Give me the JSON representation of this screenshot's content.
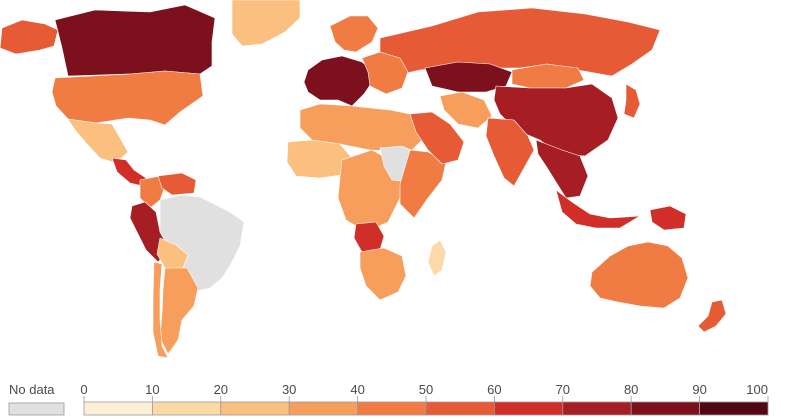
{
  "map": {
    "no_data_color": "#e0e0e0",
    "border_color": "#ffffff",
    "ocean_color": "#ffffff"
  },
  "legend": {
    "no_data_label": "No data",
    "ticks": [
      "0",
      "10",
      "20",
      "30",
      "40",
      "50",
      "60",
      "70",
      "80",
      "90",
      "100"
    ],
    "bins": [
      {
        "from": 0,
        "to": 10,
        "color": "#fdf0d8"
      },
      {
        "from": 10,
        "to": 20,
        "color": "#fcd9a6"
      },
      {
        "from": 20,
        "to": 30,
        "color": "#fbbf80"
      },
      {
        "from": 30,
        "to": 40,
        "color": "#f79e5c"
      },
      {
        "from": 40,
        "to": 50,
        "color": "#f07c43"
      },
      {
        "from": 50,
        "to": 60,
        "color": "#e65a35"
      },
      {
        "from": 60,
        "to": 70,
        "color": "#d12e2a"
      },
      {
        "from": 70,
        "to": 80,
        "color": "#a71d24"
      },
      {
        "from": 80,
        "to": 90,
        "color": "#7d101d"
      },
      {
        "from": 90,
        "to": 100,
        "color": "#520812"
      }
    ]
  },
  "regions": [
    {
      "name": "Greenland",
      "bin": 2
    },
    {
      "name": "Canada",
      "bin": 8
    },
    {
      "name": "Alaska",
      "bin": 5
    },
    {
      "name": "United States",
      "bin": 4
    },
    {
      "name": "Mexico",
      "bin": 2
    },
    {
      "name": "Central America",
      "bin": 6
    },
    {
      "name": "Colombia",
      "bin": 4
    },
    {
      "name": "Venezuela",
      "bin": 5
    },
    {
      "name": "Peru",
      "bin": 7
    },
    {
      "name": "Brazil",
      "bin": -1
    },
    {
      "name": "Bolivia",
      "bin": 2
    },
    {
      "name": "Argentina",
      "bin": 3
    },
    {
      "name": "Chile",
      "bin": 3
    },
    {
      "name": "Russia",
      "bin": 5
    },
    {
      "name": "Scandinavia",
      "bin": 4
    },
    {
      "name": "Western Europe",
      "bin": 8
    },
    {
      "name": "Eastern Europe",
      "bin": 4
    },
    {
      "name": "North Africa",
      "bin": 3
    },
    {
      "name": "West Africa",
      "bin": 2
    },
    {
      "name": "Central Africa",
      "bin": 3
    },
    {
      "name": "Sudan",
      "bin": -1
    },
    {
      "name": "East Africa",
      "bin": 4
    },
    {
      "name": "Angola",
      "bin": 6
    },
    {
      "name": "Southern Africa",
      "bin": 3
    },
    {
      "name": "Madagascar",
      "bin": 1
    },
    {
      "name": "Arabian Peninsula",
      "bin": 5
    },
    {
      "name": "Iran",
      "bin": 3
    },
    {
      "name": "Central Asia",
      "bin": 8
    },
    {
      "name": "Mongolia",
      "bin": 4
    },
    {
      "name": "China",
      "bin": 7
    },
    {
      "name": "India",
      "bin": 5
    },
    {
      "name": "Southeast Asia",
      "bin": 7
    },
    {
      "name": "Japan",
      "bin": 5
    },
    {
      "name": "Indonesia",
      "bin": 6
    },
    {
      "name": "Papua New Guinea",
      "bin": 6
    },
    {
      "name": "Australia",
      "bin": 4
    },
    {
      "name": "New Zealand",
      "bin": 5
    }
  ]
}
